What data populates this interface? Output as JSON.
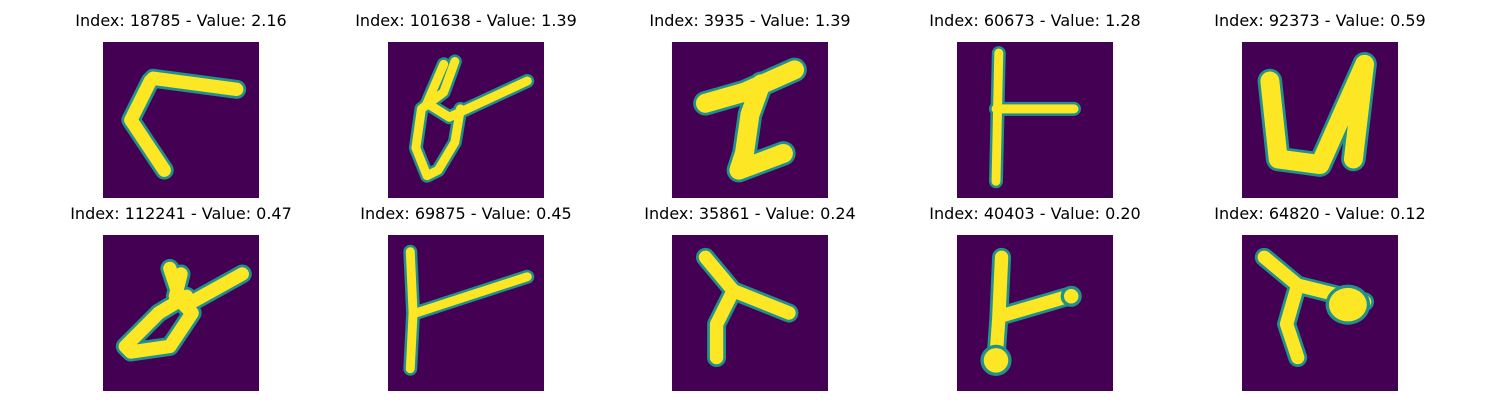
{
  "panels": [
    {
      "index": "18785",
      "value": "2.16",
      "title": "Index: 18785 - Value: 2.16"
    },
    {
      "index": "101638",
      "value": "1.39",
      "title": "Index: 101638 - Value: 1.39"
    },
    {
      "index": "3935",
      "value": "1.39",
      "title": "Index: 3935 - Value: 1.39"
    },
    {
      "index": "60673",
      "value": "1.28",
      "title": "Index: 60673 - Value: 1.28"
    },
    {
      "index": "92373",
      "value": "0.59",
      "title": "Index: 92373 - Value: 0.59"
    },
    {
      "index": "112241",
      "value": "0.47",
      "title": "Index: 112241 - Value: 0.47"
    },
    {
      "index": "69875",
      "value": "0.45",
      "title": "Index: 69875 - Value: 0.45"
    },
    {
      "index": "35861",
      "value": "0.24",
      "title": "Index: 35861 - Value: 0.24"
    },
    {
      "index": "40403",
      "value": "0.20",
      "title": "Index: 40403 - Value: 0.20"
    },
    {
      "index": "64820",
      "value": "0.12",
      "title": "Index: 64820 - Value: 0.12"
    }
  ],
  "colors": {
    "background": "#440154",
    "stroke_mid": "#21918c",
    "stroke_core": "#fde725"
  }
}
